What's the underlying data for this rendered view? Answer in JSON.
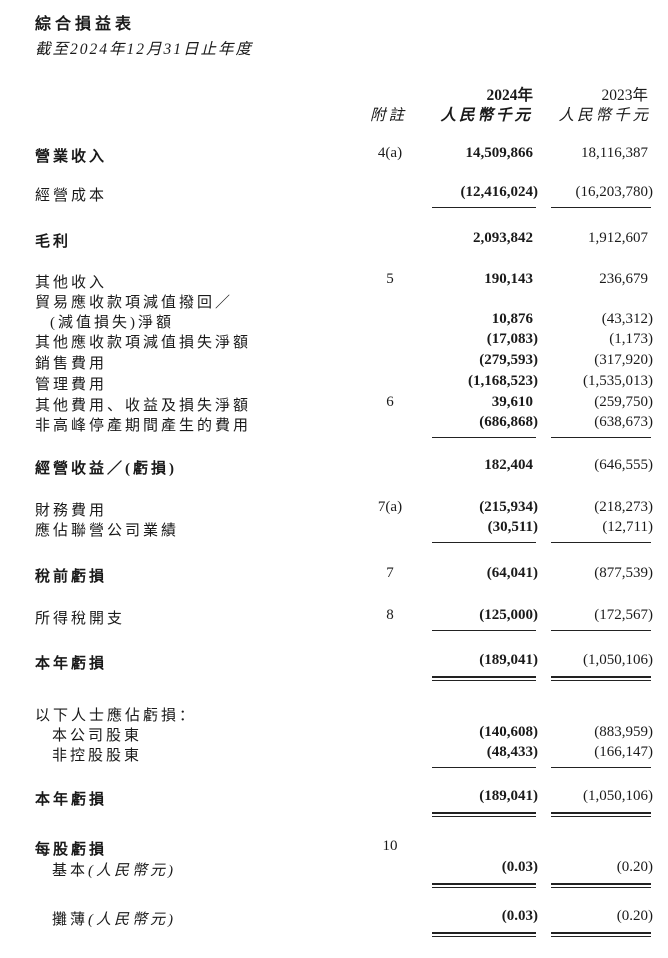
{
  "title": "綜合損益表",
  "subtitle": "截至2024年12月31日止年度",
  "columns": {
    "note_header": "附註",
    "year_2024": "2024年",
    "unit_2024": "人民幣千元",
    "year_2023": "2023年",
    "unit_2023": "人民幣千元"
  },
  "rows": [
    {
      "label": "營業收入",
      "note": "4(a)",
      "v2024": "14,509,866",
      "v2023": "18,116,387",
      "bold": true
    },
    {
      "label": "經營成本",
      "note": "",
      "v2024": "(12,416,024)",
      "v2023": "(16,203,780)"
    },
    {
      "label": "毛利",
      "note": "",
      "v2024": "2,093,842",
      "v2023": "1,912,607",
      "bold": true
    },
    {
      "label": "其他收入",
      "note": "5",
      "v2024": "190,143",
      "v2023": "236,679"
    },
    {
      "label": "貿易應收款項減值撥回／",
      "note": "",
      "v2024": "",
      "v2023": ""
    },
    {
      "label": "(減值損失)淨額",
      "note": "",
      "v2024": "10,876",
      "v2023": "(43,312)",
      "indent": 1
    },
    {
      "label": "其他應收款項減值損失淨額",
      "note": "",
      "v2024": "(17,083)",
      "v2023": "(1,173)"
    },
    {
      "label": "銷售費用",
      "note": "",
      "v2024": "(279,593)",
      "v2023": "(317,920)"
    },
    {
      "label": "管理費用",
      "note": "",
      "v2024": "(1,168,523)",
      "v2023": "(1,535,013)"
    },
    {
      "label": "其他費用、收益及損失淨額",
      "note": "6",
      "v2024": "39,610",
      "v2023": "(259,750)"
    },
    {
      "label": "非高峰停產期間產生的費用",
      "note": "",
      "v2024": "(686,868)",
      "v2023": "(638,673)"
    },
    {
      "label": "經營收益／(虧損)",
      "note": "",
      "v2024": "182,404",
      "v2023": "(646,555)",
      "bold": true
    },
    {
      "label": "財務費用",
      "note": "7(a)",
      "v2024": "(215,934)",
      "v2023": "(218,273)"
    },
    {
      "label": "應佔聯營公司業績",
      "note": "",
      "v2024": "(30,511)",
      "v2023": "(12,711)"
    },
    {
      "label": "稅前虧損",
      "note": "7",
      "v2024": "(64,041)",
      "v2023": "(877,539)",
      "bold": true
    },
    {
      "label": "所得稅開支",
      "note": "8",
      "v2024": "(125,000)",
      "v2023": "(172,567)"
    },
    {
      "label": "本年虧損",
      "note": "",
      "v2024": "(189,041)",
      "v2023": "(1,050,106)",
      "bold": true
    },
    {
      "label": "以下人士應佔虧損：",
      "note": "",
      "v2024": "",
      "v2023": ""
    },
    {
      "label": "本公司股東",
      "note": "",
      "v2024": "(140,608)",
      "v2023": "(883,959)",
      "indent": 2
    },
    {
      "label": "非控股股東",
      "note": "",
      "v2024": "(48,433)",
      "v2023": "(166,147)",
      "indent": 2
    },
    {
      "label": "本年虧損",
      "note": "",
      "v2024": "(189,041)",
      "v2023": "(1,050,106)",
      "bold": true
    },
    {
      "label": "每股虧損",
      "note": "10",
      "v2024": "",
      "v2023": "",
      "bold": true
    },
    {
      "label": "基本",
      "label_suffix": "(人民幣元)",
      "note": "",
      "v2024": "(0.03)",
      "v2023": "(0.20)",
      "indent": 2
    },
    {
      "label": "攤薄",
      "label_suffix": "(人民幣元)",
      "note": "",
      "v2024": "(0.03)",
      "v2023": "(0.20)",
      "indent": 2
    }
  ]
}
